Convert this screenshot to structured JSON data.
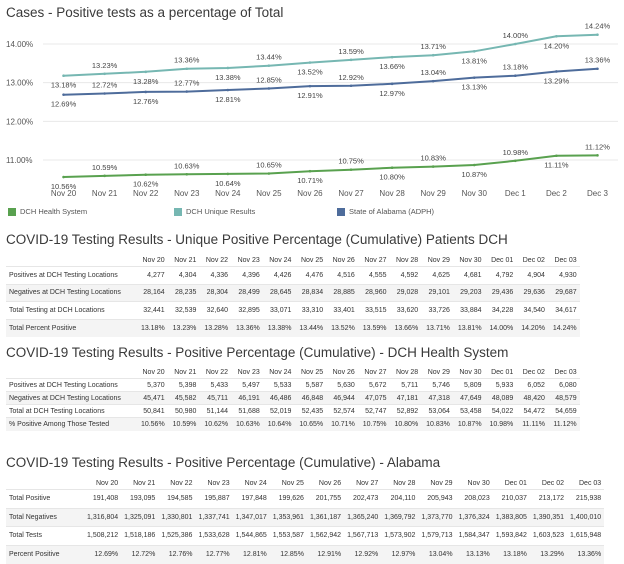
{
  "chart_data": {
    "type": "line",
    "title": "Cases - Positive tests as a percentage of Total",
    "categories": [
      "Nov 20",
      "Nov 21",
      "Nov 22",
      "Nov 23",
      "Nov 24",
      "Nov 25",
      "Nov 26",
      "Nov 27",
      "Nov 28",
      "Nov 29",
      "Nov 30",
      "Dec 1",
      "Dec 2",
      "Dec 3"
    ],
    "y_ticks": [
      "14.00%",
      "13.00%",
      "12.00%",
      "11.00%"
    ],
    "ylim": [
      10.2,
      14.4
    ],
    "grid": true,
    "legend_position": "bottom",
    "series": [
      {
        "name": "DCH Health System",
        "color": "#59a14f",
        "values": [
          10.56,
          10.59,
          10.62,
          10.63,
          10.64,
          10.65,
          10.71,
          10.75,
          10.8,
          10.83,
          10.87,
          10.98,
          11.11,
          11.12
        ],
        "labels": [
          "10.56%",
          "10.59%",
          "10.62%",
          "10.63%",
          "10.64%",
          "10.65%",
          "10.71%",
          "10.75%",
          "10.80%",
          "10.83%",
          "10.87%",
          "10.98%",
          "11.11%",
          "11.12%"
        ]
      },
      {
        "name": "DCH Unique Results",
        "color": "#76b7b2",
        "values": [
          13.18,
          13.23,
          13.28,
          13.36,
          13.38,
          13.44,
          13.52,
          13.59,
          13.66,
          13.71,
          13.81,
          14.0,
          14.2,
          14.24
        ],
        "labels": [
          "13.18%",
          "13.23%",
          "13.28%",
          "13.36%",
          "13.38%",
          "13.44%",
          "13.52%",
          "13.59%",
          "13.66%",
          "13.71%",
          "13.81%",
          "14.00%",
          "14.20%",
          "14.24%"
        ]
      },
      {
        "name": "State of Alabama (ADPH)",
        "color": "#4e6c9b",
        "values": [
          12.69,
          12.72,
          12.76,
          12.77,
          12.81,
          12.85,
          12.91,
          12.92,
          12.97,
          13.04,
          13.13,
          13.18,
          13.29,
          13.36
        ],
        "labels": [
          "12.69%",
          "12.72%",
          "12.76%",
          "12.77%",
          "12.81%",
          "12.85%",
          "12.91%",
          "12.92%",
          "12.97%",
          "13.04%",
          "13.13%",
          "13.18%",
          "13.29%",
          "13.36%"
        ]
      }
    ]
  },
  "tables": [
    {
      "title": "COVID-19 Testing Results - Unique Positive Percentage (Cumulative) Patients DCH",
      "columns": [
        "Nov 20",
        "Nov 21",
        "Nov 22",
        "Nov 23",
        "Nov 24",
        "Nov 25",
        "Nov 26",
        "Nov 27",
        "Nov 28",
        "Nov 29",
        "Nov 30",
        "Dec 01",
        "Dec 02",
        "Dec 03"
      ],
      "rows": [
        {
          "label": "Positives at DCH Testing Locations",
          "values": [
            "4,277",
            "4,304",
            "4,336",
            "4,396",
            "4,426",
            "4,476",
            "4,516",
            "4,555",
            "4,592",
            "4,625",
            "4,681",
            "4,792",
            "4,904",
            "4,930"
          ]
        },
        {
          "label": "Negatives at DCH Testing Locations",
          "values": [
            "28,164",
            "28,235",
            "28,304",
            "28,499",
            "28,645",
            "28,834",
            "28,885",
            "28,960",
            "29,028",
            "29,101",
            "29,203",
            "29,436",
            "29,636",
            "29,687"
          ]
        },
        {
          "label": "Total Testing at DCH Locations",
          "values": [
            "32,441",
            "32,539",
            "32,640",
            "32,895",
            "33,071",
            "33,310",
            "33,401",
            "33,515",
            "33,620",
            "33,726",
            "33,884",
            "34,228",
            "34,540",
            "34,617"
          ]
        },
        {
          "label": "Total Percent Positive",
          "values": [
            "13.18%",
            "13.23%",
            "13.28%",
            "13.36%",
            "13.38%",
            "13.44%",
            "13.52%",
            "13.59%",
            "13.66%",
            "13.71%",
            "13.81%",
            "14.00%",
            "14.20%",
            "14.24%"
          ]
        }
      ]
    },
    {
      "title": "COVID-19 Testing Results - Positive Percentage (Cumulative) - DCH Health System",
      "columns": [
        "Nov 20",
        "Nov 21",
        "Nov 22",
        "Nov 23",
        "Nov 24",
        "Nov 25",
        "Nov 26",
        "Nov 27",
        "Nov 28",
        "Nov 29",
        "Nov 30",
        "Dec 01",
        "Dec 02",
        "Dec 03"
      ],
      "rows": [
        {
          "label": "Positives at DCH Testing Locations",
          "values": [
            "5,370",
            "5,398",
            "5,433",
            "5,497",
            "5,533",
            "5,587",
            "5,630",
            "5,672",
            "5,711",
            "5,746",
            "5,809",
            "5,933",
            "6,052",
            "6,080"
          ]
        },
        {
          "label": "Negatives at DCH Testing Locations",
          "values": [
            "45,471",
            "45,582",
            "45,711",
            "46,191",
            "46,486",
            "46,848",
            "46,944",
            "47,075",
            "47,181",
            "47,318",
            "47,649",
            "48,089",
            "48,420",
            "48,579"
          ]
        },
        {
          "label": "Total at DCH Testing Locations",
          "values": [
            "50,841",
            "50,980",
            "51,144",
            "51,688",
            "52,019",
            "52,435",
            "52,574",
            "52,747",
            "52,892",
            "53,064",
            "53,458",
            "54,022",
            "54,472",
            "54,659"
          ]
        },
        {
          "label": "% Positive Among Those Tested",
          "values": [
            "10.56%",
            "10.59%",
            "10.62%",
            "10.63%",
            "10.64%",
            "10.65%",
            "10.71%",
            "10.75%",
            "10.80%",
            "10.83%",
            "10.87%",
            "10.98%",
            "11.11%",
            "11.12%"
          ]
        }
      ]
    },
    {
      "title": "COVID-19 Testing Results - Positive Percentage (Cumulative) - Alabama",
      "columns": [
        "Nov 20",
        "Nov 21",
        "Nov 22",
        "Nov 23",
        "Nov 24",
        "Nov 25",
        "Nov 26",
        "Nov 27",
        "Nov 28",
        "Nov 29",
        "Nov 30",
        "Dec 01",
        "Dec 02",
        "Dec 03"
      ],
      "rows": [
        {
          "label": "Total Positive",
          "values": [
            "191,408",
            "193,095",
            "194,585",
            "195,887",
            "197,848",
            "199,626",
            "201,755",
            "202,473",
            "204,110",
            "205,943",
            "208,023",
            "210,037",
            "213,172",
            "215,938"
          ]
        },
        {
          "label": "Total Negatives",
          "values": [
            "1,316,804",
            "1,325,091",
            "1,330,801",
            "1,337,741",
            "1,347,017",
            "1,353,961",
            "1,361,187",
            "1,365,240",
            "1,369,792",
            "1,373,770",
            "1,376,324",
            "1,383,805",
            "1,390,351",
            "1,400,010"
          ]
        },
        {
          "label": "Total Tests",
          "values": [
            "1,508,212",
            "1,518,186",
            "1,525,386",
            "1,533,628",
            "1,544,865",
            "1,553,587",
            "1,562,942",
            "1,567,713",
            "1,573,902",
            "1,579,713",
            "1,584,347",
            "1,593,842",
            "1,603,523",
            "1,615,948"
          ]
        },
        {
          "label": "Percent Positive",
          "values": [
            "12.69%",
            "12.72%",
            "12.76%",
            "12.77%",
            "12.81%",
            "12.85%",
            "12.91%",
            "12.92%",
            "12.97%",
            "13.04%",
            "13.13%",
            "13.18%",
            "13.29%",
            "13.36%"
          ]
        }
      ]
    }
  ]
}
